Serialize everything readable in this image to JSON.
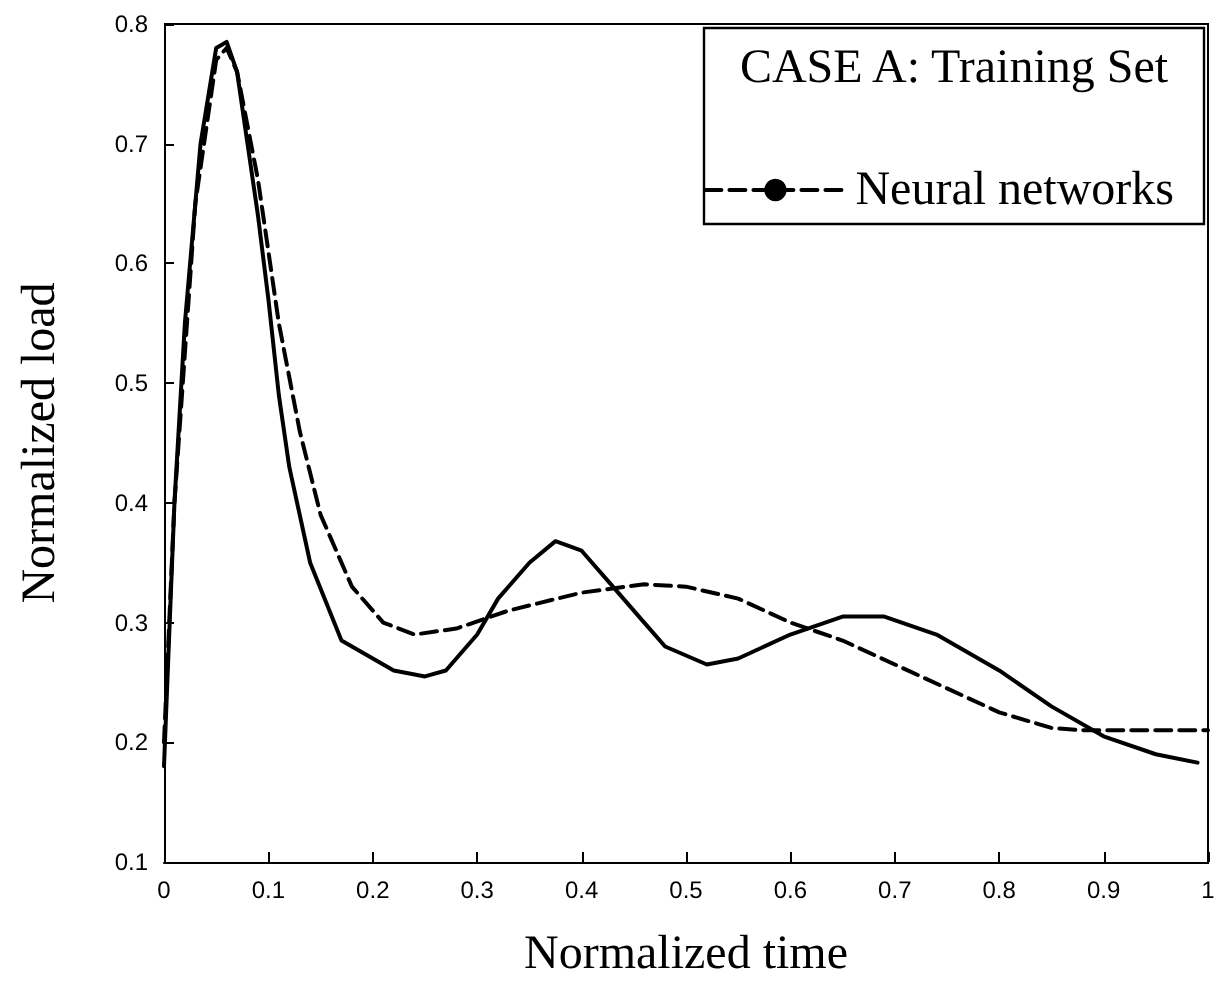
{
  "chart_data": {
    "type": "line",
    "xlabel": "Normalized time",
    "ylabel": "Normalized load",
    "legend_title": "CASE A: Training Set",
    "legend": "top right",
    "grid": false,
    "marker": "none",
    "xlim": [
      0,
      1
    ],
    "xticks": [
      0,
      0.1,
      0.2,
      0.3,
      0.4,
      0.5,
      0.6,
      0.7,
      0.8,
      0.9,
      1
    ],
    "ylim": [
      0.1,
      0.8
    ],
    "yticks": [
      0.1,
      0.2,
      0.3,
      0.4,
      0.5,
      0.6,
      0.7,
      0.8
    ],
    "series": [
      {
        "color": "#000000",
        "line_style": "solid",
        "x": [
          0,
          0.01,
          0.02,
          0.035,
          0.05,
          0.06,
          0.07,
          0.08,
          0.09,
          0.1,
          0.11,
          0.12,
          0.14,
          0.17,
          0.2,
          0.22,
          0.25,
          0.27,
          0.3,
          0.32,
          0.35,
          0.375,
          0.4,
          0.43,
          0.46,
          0.48,
          0.52,
          0.55,
          0.6,
          0.65,
          0.69,
          0.74,
          0.8,
          0.85,
          0.9,
          0.95,
          0.99
        ],
        "values": [
          0.18,
          0.4,
          0.55,
          0.7,
          0.78,
          0.785,
          0.76,
          0.7,
          0.64,
          0.57,
          0.49,
          0.43,
          0.35,
          0.285,
          0.27,
          0.26,
          0.255,
          0.26,
          0.29,
          0.32,
          0.35,
          0.368,
          0.36,
          0.33,
          0.3,
          0.28,
          0.265,
          0.27,
          0.29,
          0.305,
          0.305,
          0.29,
          0.26,
          0.23,
          0.205,
          0.19,
          0.183
        ]
      },
      {
        "name": "Neural networks",
        "color": "#000000",
        "line_style": "dashed",
        "x": [
          0,
          0.01,
          0.03,
          0.05,
          0.06,
          0.07,
          0.09,
          0.11,
          0.13,
          0.15,
          0.18,
          0.21,
          0.24,
          0.28,
          0.33,
          0.4,
          0.46,
          0.5,
          0.55,
          0.6,
          0.65,
          0.7,
          0.75,
          0.8,
          0.85,
          0.88,
          1
        ],
        "values": [
          0.2,
          0.4,
          0.65,
          0.77,
          0.78,
          0.76,
          0.67,
          0.55,
          0.46,
          0.39,
          0.33,
          0.3,
          0.29,
          0.295,
          0.31,
          0.325,
          0.332,
          0.33,
          0.32,
          0.3,
          0.285,
          0.265,
          0.245,
          0.225,
          0.212,
          0.21,
          0.21
        ]
      }
    ]
  }
}
